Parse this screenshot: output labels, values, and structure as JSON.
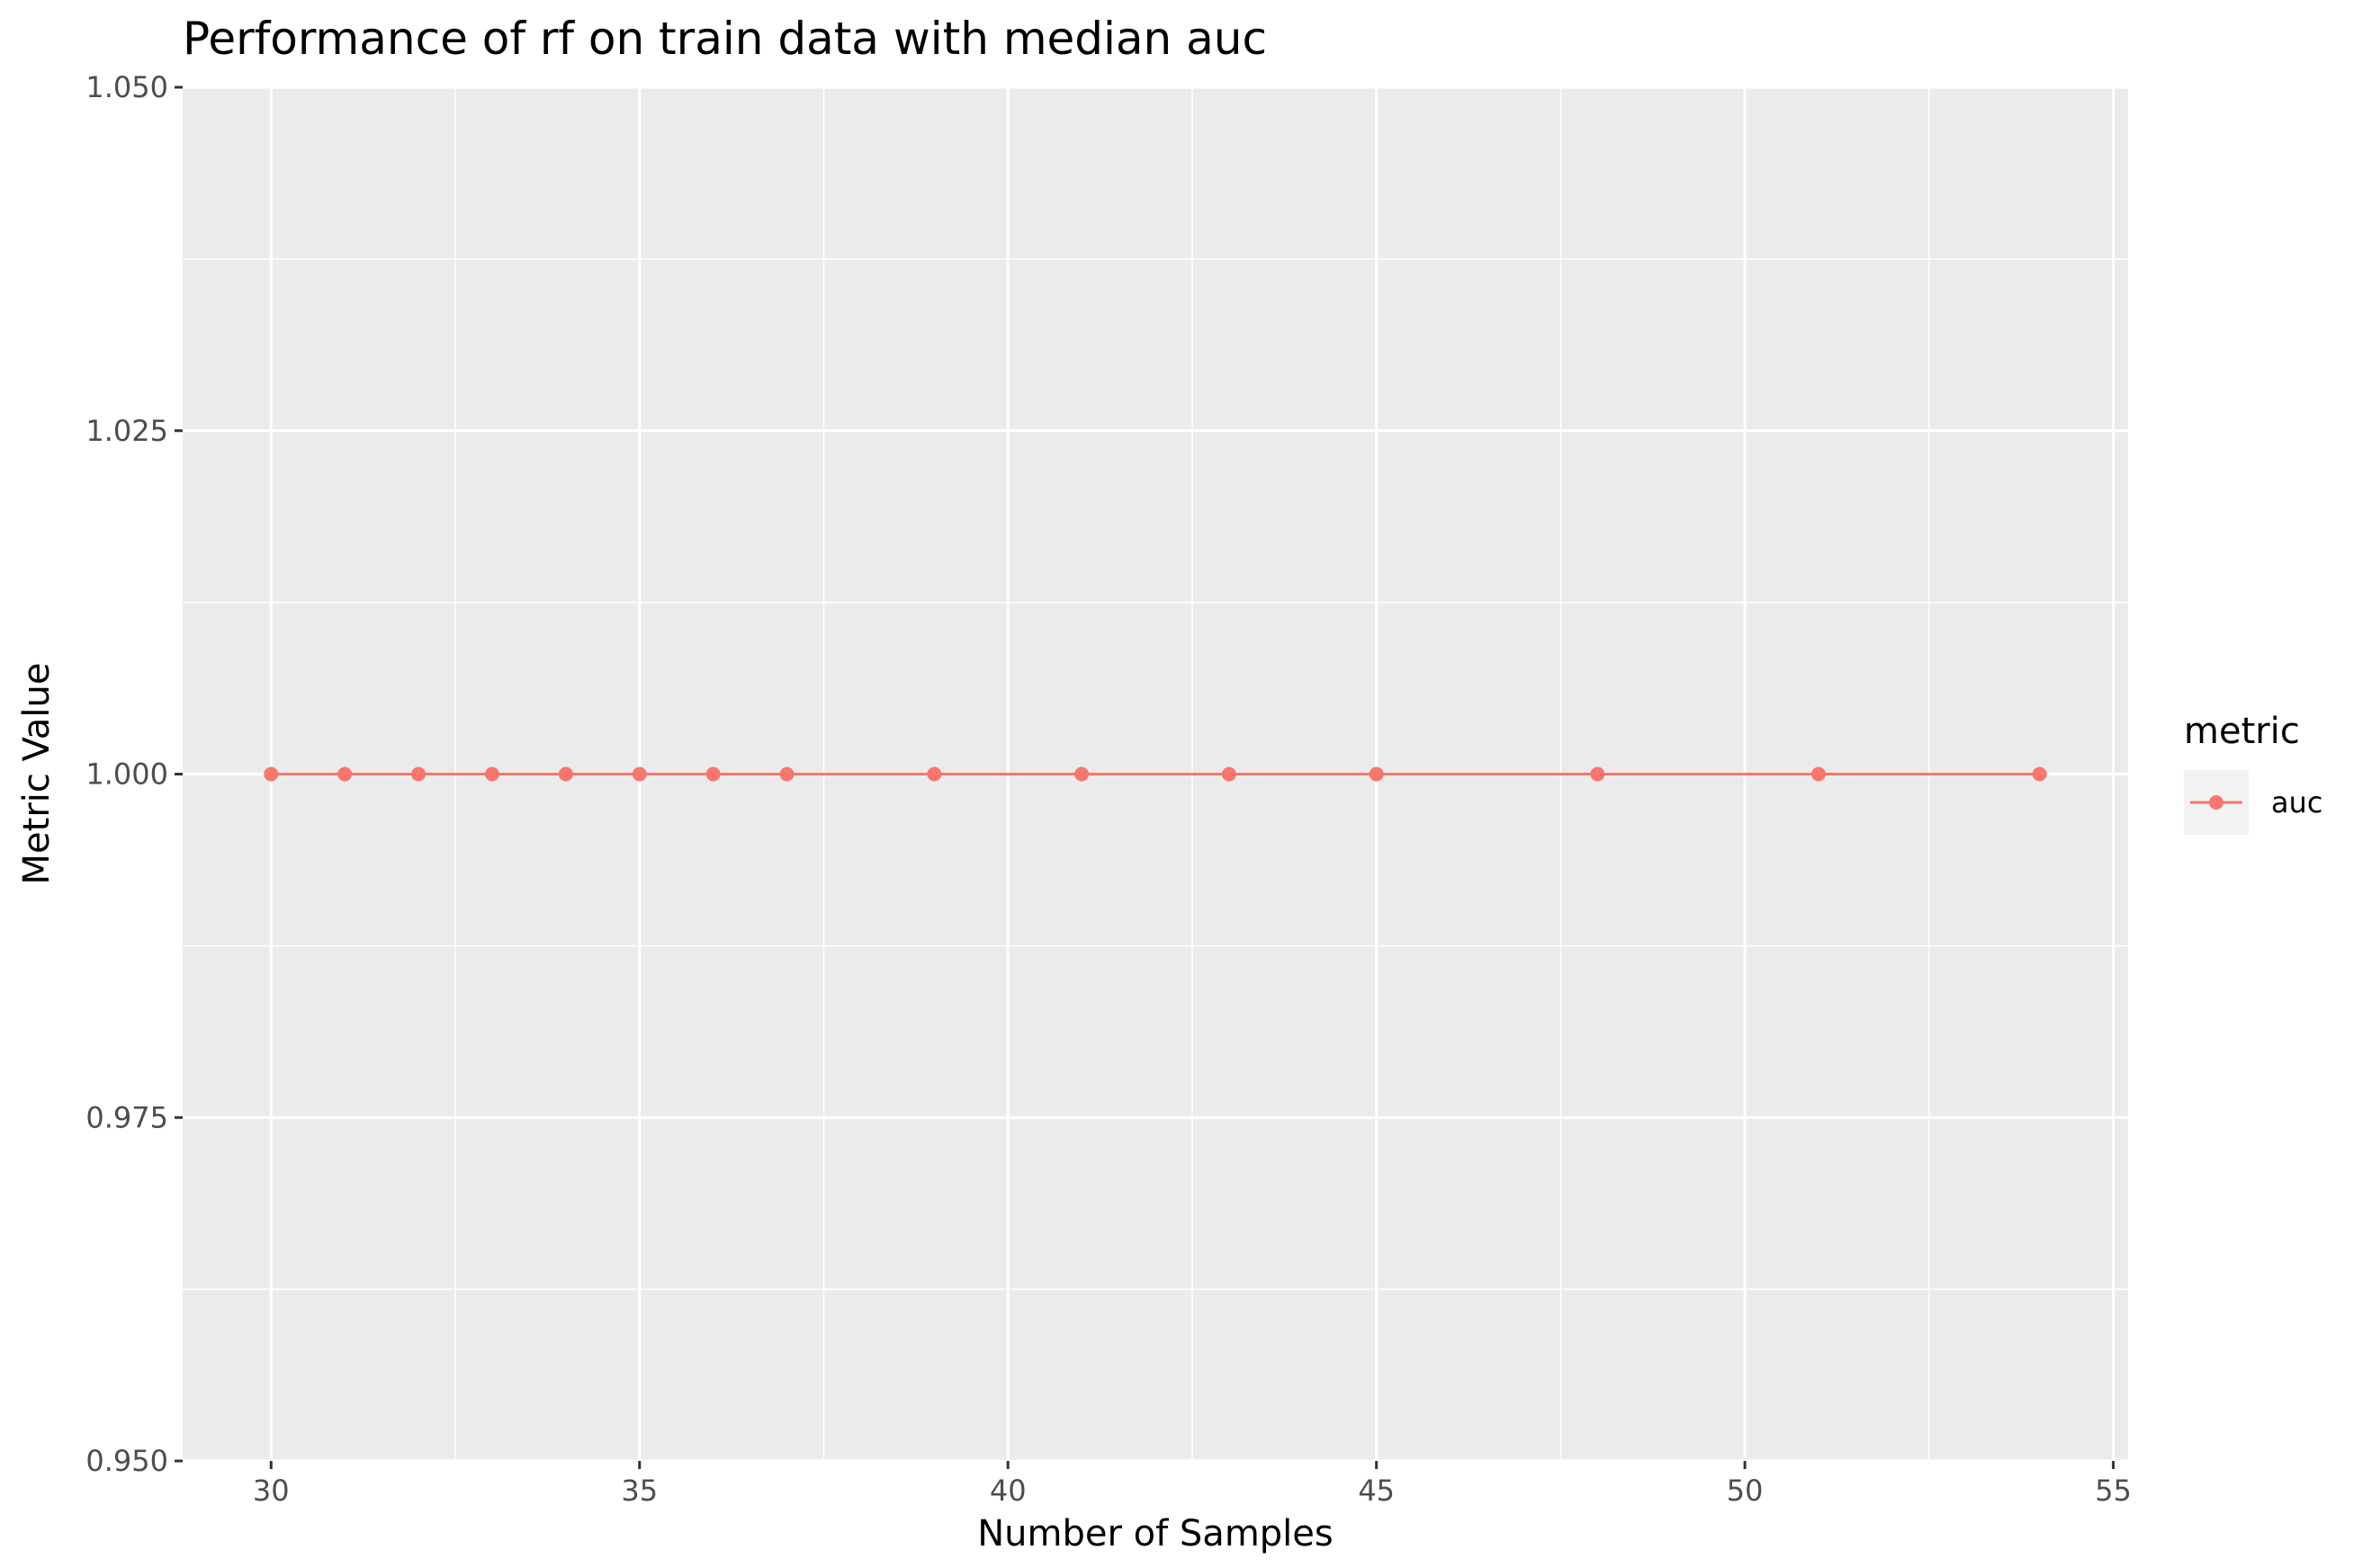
{
  "chart_data": {
    "type": "line",
    "title": "Performance of rf on train data with median auc",
    "xlabel": "Number of Samples",
    "ylabel": "Metric Value",
    "xlim": [
      28.8,
      55.2
    ],
    "ylim": [
      0.95,
      1.05
    ],
    "x_ticks": [
      30,
      35,
      40,
      45,
      50,
      55
    ],
    "x_tick_labels": [
      "30",
      "35",
      "40",
      "45",
      "50",
      "55"
    ],
    "y_ticks": [
      0.95,
      0.975,
      1.0,
      1.025,
      1.05
    ],
    "y_tick_labels": [
      "0.950",
      "0.975",
      "1.000",
      "1.025",
      "1.050"
    ],
    "grid": true,
    "legend": {
      "title": "metric",
      "position": "right"
    },
    "series": [
      {
        "name": "auc",
        "color": "#F8766D",
        "x": [
          30,
          31,
          32,
          33,
          34,
          35,
          36,
          37,
          39,
          41,
          43,
          45,
          48,
          51,
          54
        ],
        "y": [
          1.0,
          1.0,
          1.0,
          1.0,
          1.0,
          1.0,
          1.0,
          1.0,
          1.0,
          1.0,
          1.0,
          1.0,
          1.0,
          1.0,
          1.0
        ]
      }
    ]
  }
}
